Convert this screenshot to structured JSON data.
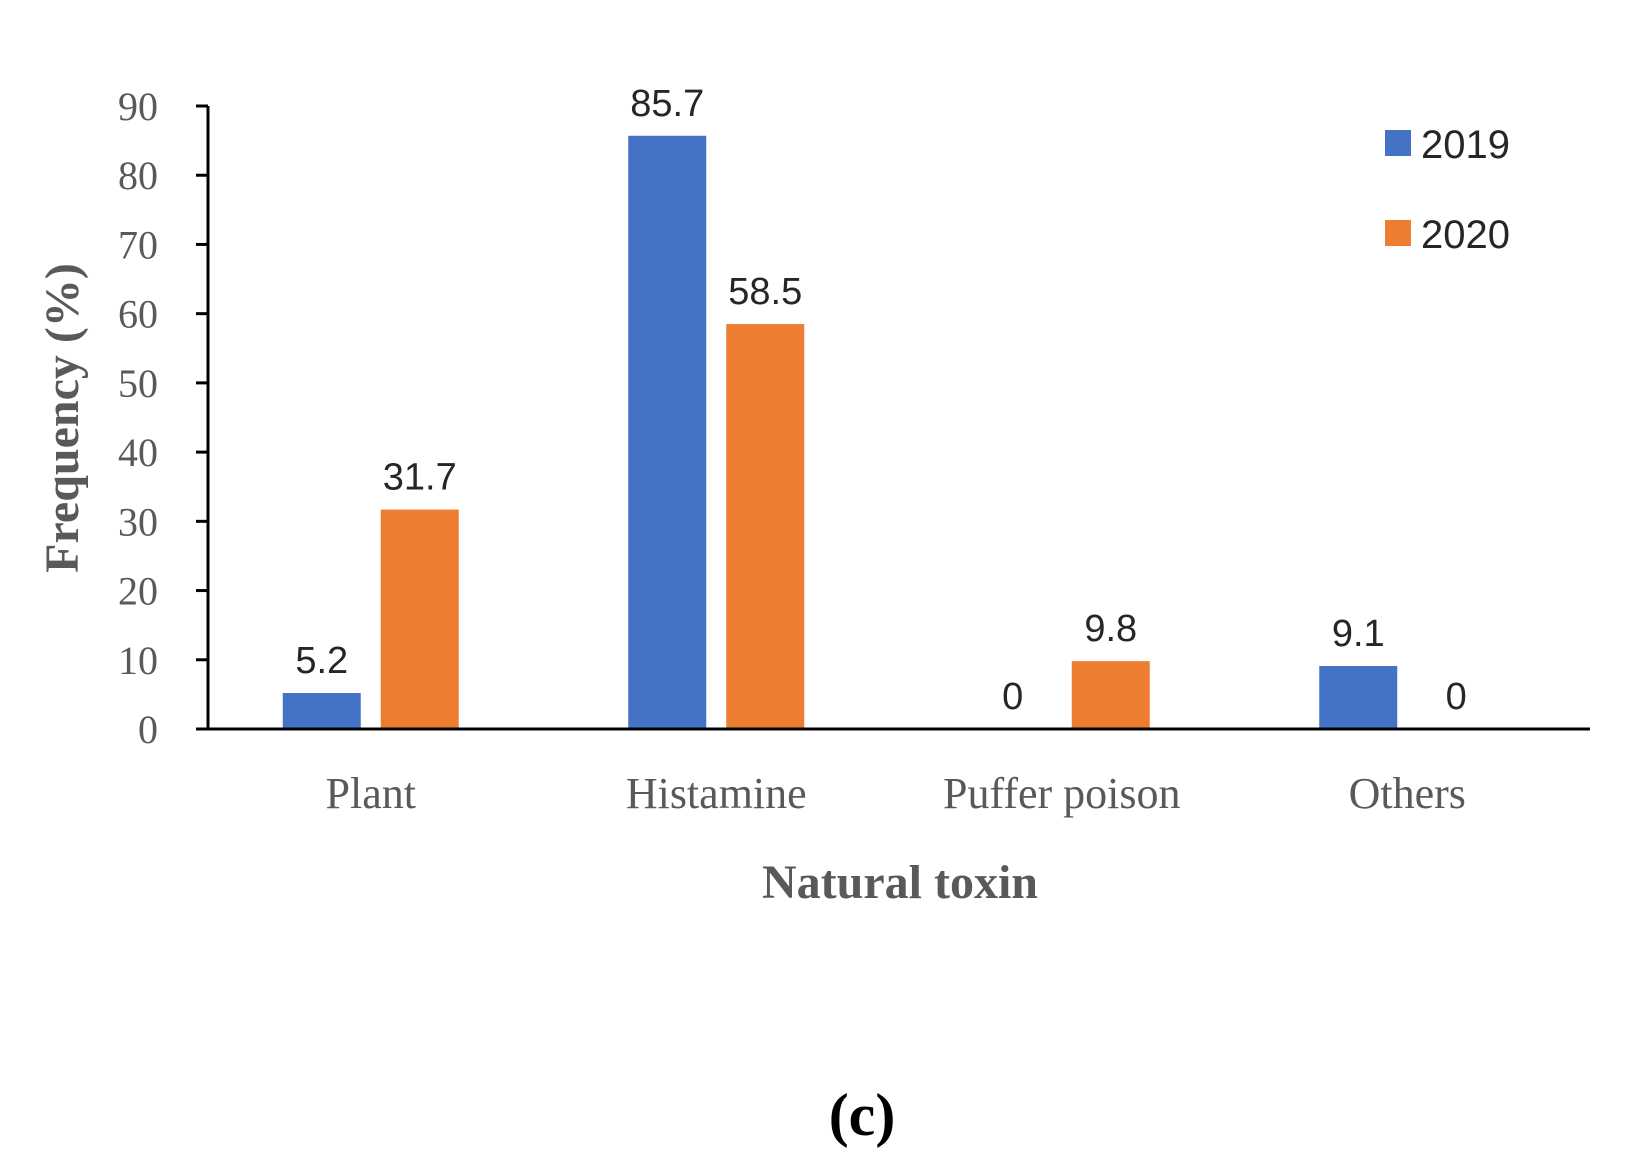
{
  "chart_data": {
    "type": "bar",
    "title": "",
    "xlabel": "Natural toxin",
    "ylabel": "Frequency (%)",
    "ylim": [
      0,
      90
    ],
    "yticks": [
      0,
      10,
      20,
      30,
      40,
      50,
      60,
      70,
      80,
      90
    ],
    "categories": [
      "Plant",
      "Histamine",
      "Puffer poison",
      "Others"
    ],
    "series": [
      {
        "name": "2019",
        "color": "#4472C4",
        "values": [
          5.2,
          85.7,
          0,
          9.1
        ],
        "labels": [
          "5.2",
          "85.7",
          "0",
          "9.1"
        ]
      },
      {
        "name": "2020",
        "color": "#ED7D31",
        "values": [
          31.7,
          58.5,
          9.8,
          0
        ],
        "labels": [
          "31.7",
          "58.5",
          "9.8",
          "0"
        ]
      }
    ],
    "legend_position": "top-right",
    "grid": false,
    "panel_label": "(c)"
  }
}
